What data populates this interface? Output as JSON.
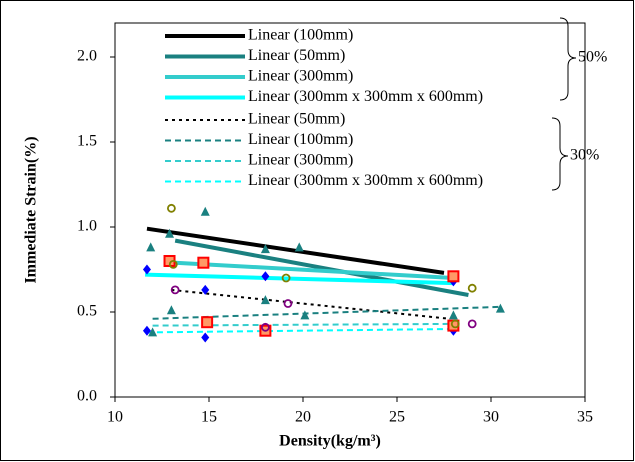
{
  "chart_data": {
    "type": "scatter",
    "x_label": "Density(kg/m³)",
    "y_label": "Immediate Strain(%)",
    "xlim": [
      10,
      35
    ],
    "xticks": [
      10,
      15,
      20,
      25,
      30,
      35
    ],
    "ylim": [
      0,
      2.2
    ],
    "yticks": [
      {
        "value": 0,
        "label": "0.0"
      },
      0.5,
      {
        "value": 1,
        "label": "1.0"
      },
      1.5,
      {
        "value": 2,
        "label": "2.0"
      }
    ],
    "annotations": [
      "50%",
      "30%"
    ],
    "series": [
      {
        "name": "Linear (100mm)",
        "mode": "line",
        "dash": "solid",
        "color": "#000000",
        "x": [
          11.7,
          27.5
        ],
        "values": [
          0.99,
          0.73
        ]
      },
      {
        "name": "Linear (50mm)",
        "mode": "line",
        "dash": "solid",
        "color": "#1a8080",
        "x": [
          13.2,
          28.8
        ],
        "values": [
          0.92,
          0.6
        ]
      },
      {
        "name": "Linear (300mm)",
        "mode": "line",
        "dash": "solid",
        "color": "#33cccc",
        "x": [
          13.2,
          28.0
        ],
        "values": [
          0.79,
          0.7
        ]
      },
      {
        "name": "Linear (300mm x 300mm x 600mm)",
        "mode": "line",
        "dash": "solid",
        "color": "#00ffff",
        "x": [
          11.6,
          28.0
        ],
        "values": [
          0.72,
          0.67
        ]
      },
      {
        "name": "Linear (50mm)",
        "mode": "line",
        "dash": "dotted",
        "color": "#000000",
        "x": [
          13.0,
          27.8
        ],
        "values": [
          0.63,
          0.46
        ]
      },
      {
        "name": "Linear (100mm)",
        "mode": "line",
        "dash": "dashed",
        "color": "#1a8080",
        "x": [
          12.0,
          30.4
        ],
        "values": [
          0.46,
          0.53
        ]
      },
      {
        "name": "Linear (300mm)",
        "mode": "line",
        "dash": "dashed",
        "color": "#33cccc",
        "x": [
          12.0,
          28.0
        ],
        "values": [
          0.42,
          0.43
        ]
      },
      {
        "name": "Linear (300mm x 300mm x 600mm)",
        "mode": "line",
        "dash": "dashed",
        "color": "#00ffff",
        "x": [
          11.7,
          28.0
        ],
        "values": [
          0.38,
          0.4
        ]
      },
      {
        "mode": "marker",
        "marker": "triangle",
        "color": "#1a8080",
        "x": [
          11.9,
          12.9,
          13.0,
          14.8,
          18.0,
          18.0,
          19.8,
          20.1,
          28.0,
          30.5,
          12.0,
          15.0
        ],
        "values": [
          0.88,
          0.96,
          0.51,
          1.09,
          0.87,
          0.57,
          0.88,
          0.48,
          0.48,
          0.52,
          0.38,
          0.44
        ]
      },
      {
        "mode": "marker",
        "marker": "diamond",
        "color": "#0000ff",
        "x": [
          11.7,
          11.7,
          14.8,
          14.8,
          18.0,
          18.0,
          28.0,
          28.0
        ],
        "values": [
          0.75,
          0.39,
          0.63,
          0.35,
          0.71,
          0.4,
          0.68,
          0.39
        ]
      },
      {
        "mode": "marker",
        "marker": "square",
        "color": "#ff0000",
        "x": [
          12.9,
          14.7,
          14.9,
          18.0,
          28.0,
          28.0
        ],
        "values": [
          0.8,
          0.79,
          0.44,
          0.39,
          0.71,
          0.42
        ]
      },
      {
        "mode": "marker",
        "marker": "circle",
        "color": "#808000",
        "x": [
          13.0,
          13.1,
          19.1,
          29.0,
          28.1
        ],
        "values": [
          1.11,
          0.78,
          0.7,
          0.64,
          0.43
        ]
      },
      {
        "mode": "marker",
        "marker": "circle",
        "color": "#800080",
        "x": [
          13.2,
          19.2,
          29.0,
          18.0
        ],
        "values": [
          0.63,
          0.55,
          0.43,
          0.41
        ]
      }
    ]
  }
}
